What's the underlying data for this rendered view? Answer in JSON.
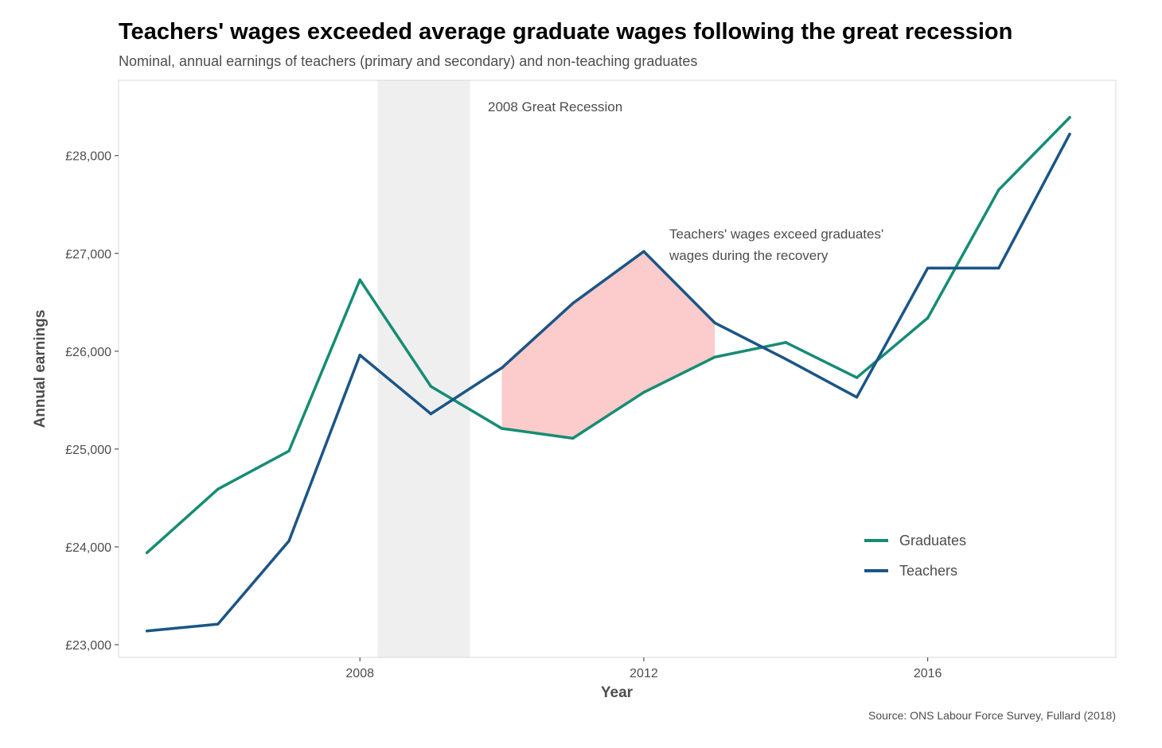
{
  "chart_data": {
    "type": "line",
    "title": "Teachers' wages exceeded average graduate wages following the great recession",
    "subtitle": "Nominal, annual earnings of teachers (primary and secondary) and non-teaching graduates",
    "xlabel": "Year",
    "ylabel": "Annual earnings",
    "source": "Source: ONS Labour Force Survey, Fullard (2018)",
    "xlim": [
      2004.6,
      2018.65
    ],
    "ylim": [
      22870,
      28770
    ],
    "x_ticks": [
      2008,
      2012,
      2016
    ],
    "x_tick_labels": [
      "2008",
      "2012",
      "2016"
    ],
    "y_ticks": [
      23000,
      24000,
      25000,
      26000,
      27000,
      28000
    ],
    "y_tick_labels": [
      "£23,000",
      "£24,000",
      "£25,000",
      "£26,000",
      "£27,000",
      "£28,000"
    ],
    "x": [
      2005,
      2006,
      2007,
      2008,
      2009,
      2010,
      2011,
      2012,
      2013,
      2014,
      2015,
      2016,
      2017,
      2018
    ],
    "series": [
      {
        "name": "Graduates",
        "color": "#168c74",
        "values": [
          23940,
          24590,
          24980,
          26730,
          25640,
          25210,
          25110,
          25580,
          25940,
          26090,
          25730,
          26340,
          27650,
          28390
        ]
      },
      {
        "name": "Teachers",
        "color": "#1b5586",
        "values": [
          23140,
          23210,
          24060,
          25960,
          25360,
          25830,
          26490,
          27020,
          26290,
          25920,
          25530,
          26850,
          26850,
          28220
        ]
      }
    ],
    "recession_band": {
      "start": 2008.25,
      "end": 2009.55,
      "label": "2008 Great Recession",
      "color": "#efefef"
    },
    "highlight": {
      "start": 2010,
      "end": 2013,
      "color": "#fccbcb"
    },
    "annotation_lines": [
      "Teachers' wages exceed graduates'",
      "wages during the recovery"
    ],
    "legend_position": "bottom-right",
    "grid": false
  }
}
